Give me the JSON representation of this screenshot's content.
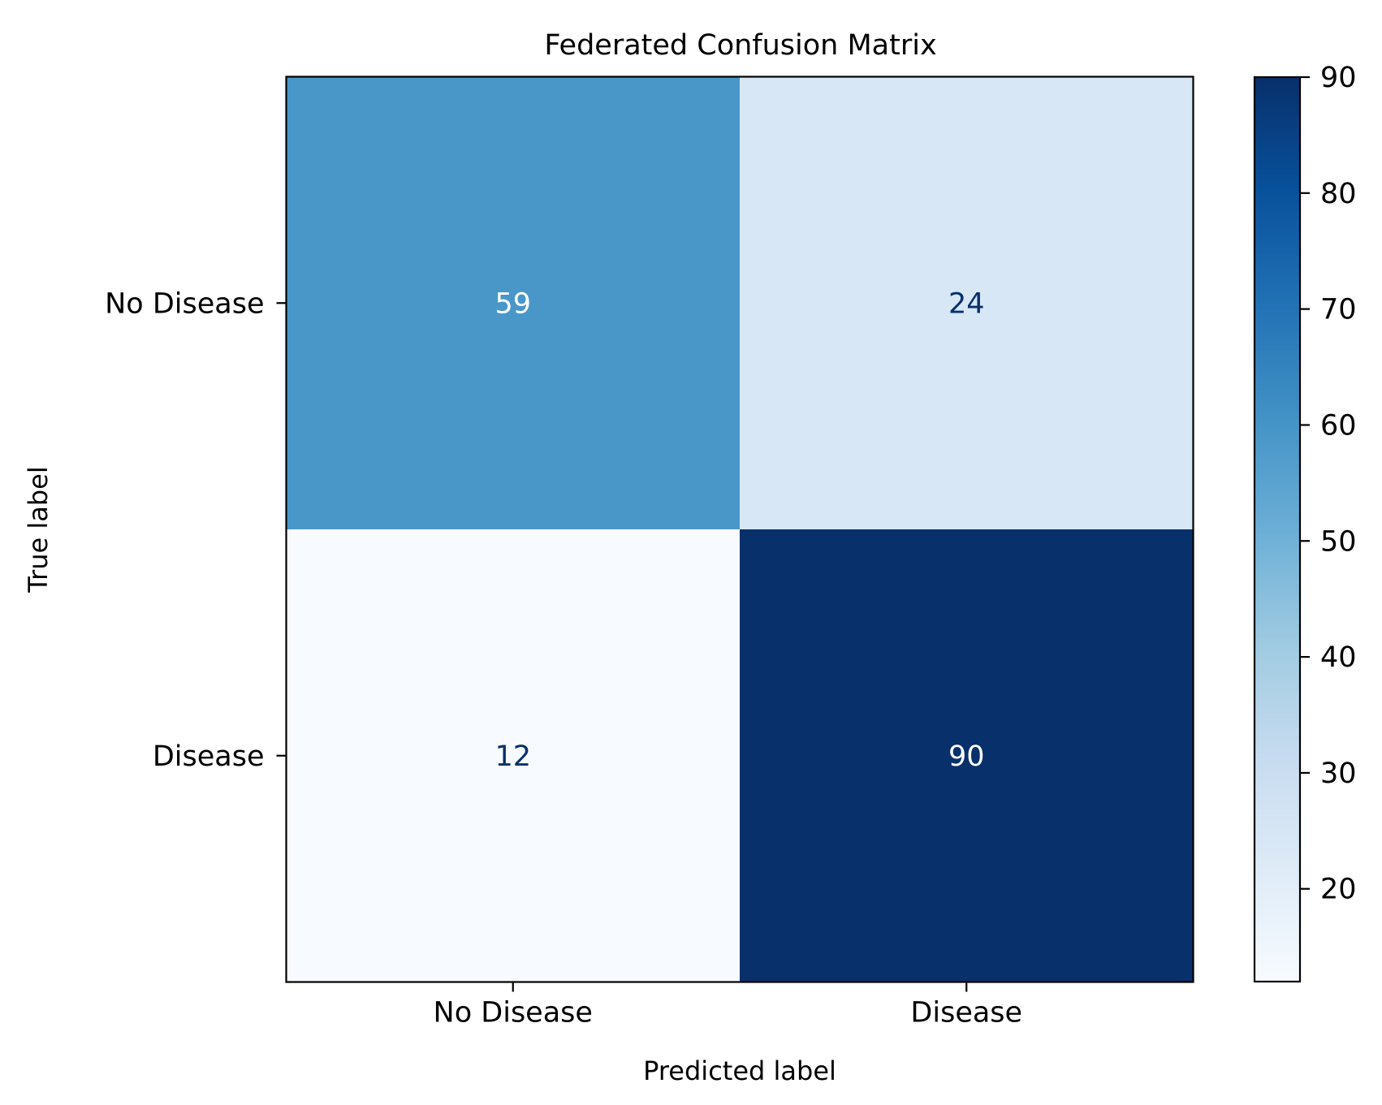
{
  "chart_data": {
    "type": "heatmap",
    "title": "Federated Confusion Matrix",
    "xlabel": "Predicted label",
    "ylabel": "True label",
    "x_categories": [
      "No Disease",
      "Disease"
    ],
    "y_categories": [
      "No Disease",
      "Disease"
    ],
    "matrix": [
      [
        59,
        24
      ],
      [
        12,
        90
      ]
    ],
    "colormap": "Blues",
    "colorbar": {
      "range": [
        12,
        90
      ],
      "ticks": [
        20,
        30,
        40,
        50,
        60,
        70,
        80,
        90
      ]
    },
    "colors": {
      "low": "#f7fbff",
      "high": "#08306b",
      "text_on_light": "#08306b",
      "text_on_dark": "#ffffff"
    }
  }
}
